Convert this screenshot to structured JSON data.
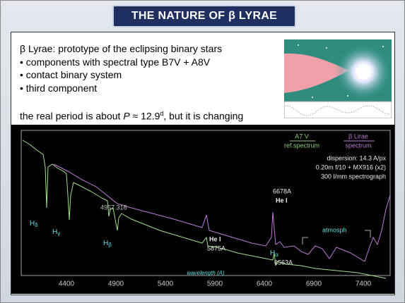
{
  "header": {
    "title": "THE NATURE OF β LYRAE"
  },
  "intro": {
    "lines": [
      "β Lyrae: prototype of the eclipsing binary stars",
      "• components with spectral type B7V + A8V",
      "• contact binary system",
      "• third component"
    ],
    "period": {
      "before": "the real period is about ",
      "symbol": "P",
      "middle": " ≈ 12.9",
      "superscript": "d",
      "after": ", but it is changing"
    }
  },
  "spectrum": {
    "legend": {
      "reference": {
        "name": "A7 V",
        "caption": "ref.spectrum"
      },
      "target": {
        "name": "β Lirae",
        "caption": "spectrum"
      }
    },
    "instrument": [
      "dispersion: 14.3 A/px",
      "0.20m f/10 + MX916 (x2)",
      "300 l/mm spectrograph"
    ],
    "lines": {
      "h_delta": {
        "base": "H",
        "sub": "δ"
      },
      "h_gamma": {
        "base": "H",
        "sub": "γ"
      },
      "h_beta": {
        "base": "H",
        "sub": "β"
      },
      "h_alpha": {
        "base": "H",
        "sub": "α"
      },
      "h_alpha_wavelength": "6563A",
      "marker": "4957.318",
      "he_5875": {
        "name": "He I",
        "wavelength": "5875A"
      },
      "he_6678": {
        "name": "He I",
        "wavelength": "6678A"
      },
      "atmosphere": "atmosph"
    },
    "x_label": "wavelength (A)",
    "xticks": [
      4400,
      4900,
      5400,
      5900,
      6400,
      6900,
      7400
    ]
  }
}
